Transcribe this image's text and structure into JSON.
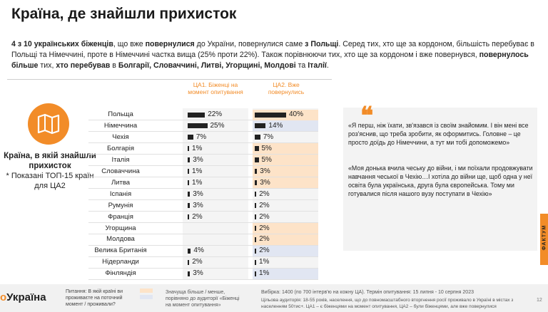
{
  "title": "Країна, де знайшли прихисток",
  "intro": {
    "p1": "4 з 10 українських біженців",
    "p2": ", що вже ",
    "p3": "повернулися",
    "p4": " до України, повернулися саме ",
    "p5": "з Польщі",
    "p6": ". Серед тих, хто ще за кордоном, більшість перебуває в Польщі та Німеччині, проте в Німеччині частка вища (25% проти 22%). Також порівнюючи тих, хто ще за кордоном і вже повернувся, ",
    "p7": "повернулось більше",
    "p8": "  тих, ",
    "p9": "хто перебував",
    "p10": " в ",
    "p11": "Болгарії, Словаччині, Литві, Угорщині, Молдові",
    "p12": " та ",
    "p13": "Італії",
    "p14": "."
  },
  "sidebar": {
    "icon": "map-icon",
    "title": "Країна, в якій знайшли прихисток",
    "note": "* Показані ТОП-15 країн для ЦА2"
  },
  "chart_data": {
    "type": "bar",
    "unit": "%",
    "categories": [
      "Польща",
      "Німеччина",
      "Чехія",
      "Болгарія",
      "Італія",
      "Словаччина",
      "Литва",
      "Іспанія",
      "Румунія",
      "Франція",
      "Угорщина",
      "Молдова",
      "Велика Британія",
      "Нідерланди",
      "Фінляндія"
    ],
    "series": [
      {
        "name": "ЦА1. Біженці на момент опитування",
        "values": [
          22,
          25,
          7,
          1,
          3,
          1,
          1,
          3,
          3,
          2,
          null,
          null,
          4,
          2,
          3
        ],
        "labels": [
          "22%",
          "25%",
          "7%",
          "1%",
          "3%",
          "1%",
          "1%",
          "3%",
          "3%",
          "2%",
          "",
          "",
          "4%",
          "2%",
          "3%"
        ]
      },
      {
        "name": "ЦА2. Вже повернулись",
        "values": [
          40,
          14,
          7,
          5,
          5,
          3,
          3,
          2,
          2,
          2,
          2,
          2,
          2,
          1,
          1
        ],
        "labels": [
          "40%",
          "14%",
          "7%",
          "5%",
          "5%",
          "3%",
          "3%",
          "2%",
          "2%",
          "2%",
          "2%",
          "2%",
          "2%",
          "1%",
          "1%"
        ]
      }
    ],
    "highlight_ca2": [
      "orange",
      "blue",
      "",
      "orange",
      "orange",
      "orange",
      "orange",
      "",
      "",
      "",
      "orange",
      "orange",
      "blue",
      "",
      "blue"
    ],
    "colors": {
      "bar": "#222222",
      "more": "#fde3c8",
      "less": "#e1e6f2",
      "accent": "#f28c28"
    },
    "xlim": [
      0,
      45
    ]
  },
  "quote": {
    "q1": "«Я перш, ніж їхати, зв'язався із своїм знайомим. І він мені все роз'яснив, що треба зробити, як оформитись. Головне – це просто доїдь до Німеччини, а тут ми тобі допоможемо»",
    "q2": "«Моя донька вчила чеську до війни, і ми поїхали продовжувати навчання чеської в Чехію…І хотіла до війни ще, щоб одна у неї освіта була українська, друга була європейська. Тому ми готувалися після нашого вузу поступати в Чехію»"
  },
  "sidetab": "ФАКТУМ",
  "footer": {
    "logo_o": "о",
    "logo_rest": "Україна",
    "question": "Питання: В якій країні ви проживаєте на поточний момент / проживали?",
    "legend": "Значуща більше / менше, порівняно до аудиторії «Біженці на момент опитування»",
    "sample": "Вибірка: 1400 (по 700 інтерв'ю на кожну ЦА). Термін опитування: 15 липня - 10 серпня 2023",
    "audience": "Цільова аудиторія: 18-55 років, населення, що до повномасштабного вторгнення росії проживало в Україні в містах з населенням 50тис+. ЦА1 – є біженцями на момент опитування, ЦА2 – були біженцями, але вже повернулися",
    "page": "12"
  }
}
